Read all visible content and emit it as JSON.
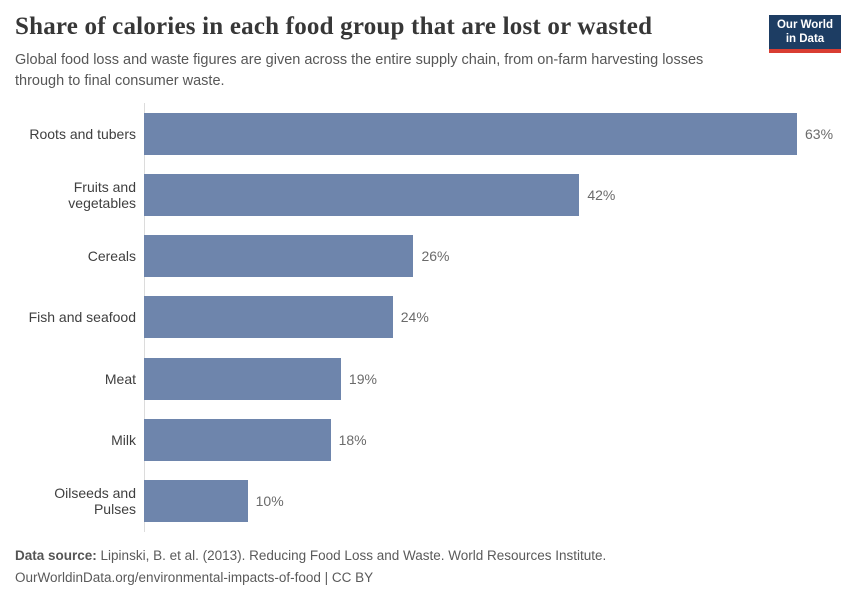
{
  "header": {
    "title": "Share of calories in each food group that are lost or wasted",
    "subtitle": "Global food loss and waste figures are given across the entire supply chain, from on-farm harvesting losses through to final consumer waste.",
    "logo": {
      "line1": "Our World",
      "line2": "in Data",
      "bg_color": "#1d3d63",
      "accent_color": "#d93d32"
    }
  },
  "chart_data": {
    "type": "bar",
    "orientation": "horizontal",
    "title": "Share of calories in each food group that are lost or wasted",
    "categories": [
      "Roots and tubers",
      "Fruits and vegetables",
      "Cereals",
      "Fish and seafood",
      "Meat",
      "Milk",
      "Oilseeds and Pulses"
    ],
    "values": [
      63,
      42,
      26,
      24,
      19,
      18,
      10
    ],
    "value_suffix": "%",
    "value_labels_shown": true,
    "xlim": [
      0,
      63
    ],
    "grid": false,
    "legend": "none",
    "bar_color": "#6e85ac",
    "axis_line_color": "#dcdcdc"
  },
  "footer": {
    "source_label": "Data source:",
    "source_text": "Lipinski, B. et al. (2013). Reducing Food Loss and Waste. World Resources Institute.",
    "citation_line": "OurWorldinData.org/environmental-impacts-of-food | CC BY"
  }
}
